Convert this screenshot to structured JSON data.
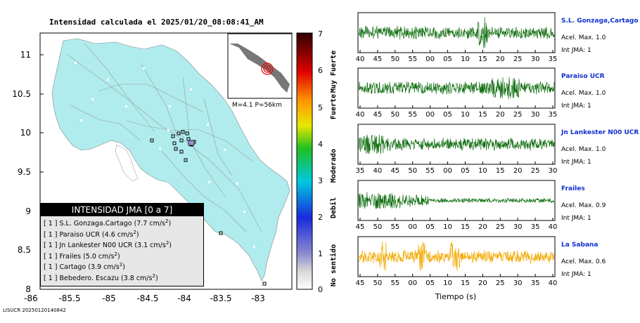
{
  "map": {
    "title": "Intensidad calculada el 2025/01/20_08:08:41_AM",
    "lat_ticks": [
      "11",
      "10.5",
      "10",
      "9.5",
      "9",
      "8.5",
      "8"
    ],
    "lon_ticks": [
      "-86",
      "-85.5",
      "-85",
      "-84.5",
      "-84",
      "-83.5",
      "-83"
    ],
    "inset_label": "M=4.1 P=56km",
    "colors": {
      "land": "#b0ecee",
      "sea": "#ffffff",
      "roads": "#9a9a9a",
      "station_box": "#000000"
    }
  },
  "colorbar": {
    "ticks": [
      "7",
      "6",
      "5",
      "4",
      "3",
      "2",
      "1",
      "0"
    ],
    "labels": [
      "Muy Fuerte",
      "Fuerte",
      "Moderado",
      "Debil",
      "No sentido"
    ]
  },
  "legend": {
    "title": "INTENSIDAD JMA [0 a 7]",
    "items": [
      {
        "int": "[ 1 ]",
        "name": "S.L. Gonzaga.Cartago",
        "acc": "(7.7 cm/s",
        "sup": "2",
        "close": ")"
      },
      {
        "int": "[ 1 ]",
        "name": "Paraiso UCR",
        "acc": "(4.6 cm/s",
        "sup": "2",
        "close": ")"
      },
      {
        "int": "[ 1 ]",
        "name": "Jn Lankester N00 UCR",
        "acc": "(3.1 cm/s",
        "sup": "2",
        "close": ")"
      },
      {
        "int": "[ 1 ]",
        "name": "Frailes",
        "acc": "(5.0 cm/s",
        "sup": "2",
        "close": ")"
      },
      {
        "int": "[ 1 ]",
        "name": "Cartago",
        "acc": "(3.9 cm/s",
        "sup": "2",
        "close": ")"
      },
      {
        "int": "[ 1 ]",
        "name": "Bebedero. Escazu",
        "acc": "(3.8 cm/s",
        "sup": "2",
        "close": ")"
      }
    ]
  },
  "seismograms": [
    {
      "name": "S.L. Gonzaga,Cartago",
      "acel": "Acel. Max. 1.0",
      "jma": "Int JMA: 1",
      "color": "#0b6b0b",
      "ticks": [
        "40",
        "45",
        "50",
        "55",
        "00",
        "05",
        "10",
        "15",
        "20",
        "25",
        "30",
        "35"
      ]
    },
    {
      "name": "Paraiso UCR",
      "acel": "Acel. Max. 1.0",
      "jma": "Int JMA: 1",
      "color": "#0b6b0b",
      "ticks": [
        "40",
        "45",
        "50",
        "55",
        "00",
        "05",
        "10",
        "15",
        "20",
        "25",
        "30",
        "35"
      ]
    },
    {
      "name": "Jn Lankester N00 UCR",
      "acel": "Acel. Max. 1.0",
      "jma": "Int JMA: 1",
      "color": "#0b6b0b",
      "ticks": [
        "35",
        "40",
        "45",
        "50",
        "55",
        "00",
        "05",
        "10",
        "15",
        "20",
        "25",
        "30"
      ]
    },
    {
      "name": "Frailes",
      "acel": "Acel. Max. 0.9",
      "jma": "Int JMA: 1",
      "color": "#0b6b0b",
      "ticks": [
        "45",
        "50",
        "55",
        "00",
        "05",
        "10",
        "15",
        "20",
        "25",
        "30",
        "35",
        "40"
      ]
    },
    {
      "name": "La Sabana",
      "acel": "Acel. Max. 0.6",
      "jma": "Int JMA: 1",
      "color": "#f2a900",
      "ticks": [
        "45",
        "50",
        "55",
        "00",
        "05",
        "10",
        "15",
        "20",
        "25",
        "30",
        "35",
        "40"
      ]
    }
  ],
  "xlabel": "Tiempo (s)",
  "footer": "LISUCR 20250120140842"
}
